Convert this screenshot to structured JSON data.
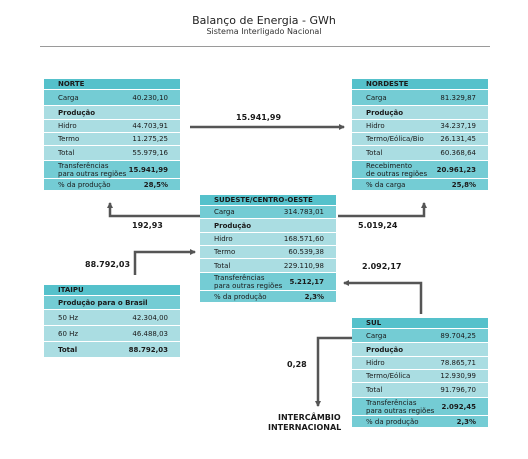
{
  "header": {
    "title": "Balanço de Energia - GWh",
    "subtitle": "Sistema Interligado Nacional"
  },
  "norte": {
    "name": "NORTE",
    "carga_label": "Carga",
    "carga": "40.230,10",
    "producao_label": "Produção",
    "hidro_label": "Hidro",
    "hidro": "44.703,91",
    "termo_label": "Termo",
    "termo": "11.275,25",
    "total_label": "Total",
    "total": "55.979,16",
    "transf_label_1": "Transferências",
    "transf_label_2": "para outras regiões",
    "transf": "15.941,99",
    "pct_label": "% da produção",
    "pct": "28,5%"
  },
  "nordeste": {
    "name": "NORDESTE",
    "carga_label": "Carga",
    "carga": "81.329,87",
    "producao_label": "Produção",
    "hidro_label": "Hidro",
    "hidro": "34.237,19",
    "termo_label": "Termo/Eólica/Bio",
    "termo": "26.131,45",
    "total_label": "Total",
    "total": "60.368,64",
    "transf_label_1": "Recebimento",
    "transf_label_2": "de outras regiões",
    "transf": "20.961,23",
    "pct_label": "% da carga",
    "pct": "25,8%"
  },
  "sudeste": {
    "name": "SUDESTE/CENTRO-OESTE",
    "carga_label": "Carga",
    "carga": "314.783,01",
    "producao_label": "Produção",
    "hidro_label": "Hidro",
    "hidro": "168.571,60",
    "termo_label": "Termo",
    "termo": "60.539,38",
    "total_label": "Total",
    "total": "229.110,98",
    "transf_label_1": "Transferências",
    "transf_label_2": "para outras regiões",
    "transf": "5.212,17",
    "pct_label": "% da produção",
    "pct": "2,3%"
  },
  "itaipu": {
    "name": "ITAIPU",
    "producao_label": "Produção para o Brasil",
    "hz50_label": "50 Hz",
    "hz50": "42.304,00",
    "hz60_label": "60 Hz",
    "hz60": "46.488,03",
    "total_label": "Total",
    "total": "88.792,03"
  },
  "sul": {
    "name": "SUL",
    "carga_label": "Carga",
    "carga": "89.704,25",
    "producao_label": "Produção",
    "hidro_label": "Hidro",
    "hidro": "78.865,71",
    "termo_label": "Termo/Eólica",
    "termo": "12.930,99",
    "total_label": "Total",
    "total": "91.796,70",
    "transf_label_1": "Transferências",
    "transf_label_2": "para outras regiões",
    "transf": "2.092,45",
    "pct_label": "% da produção",
    "pct": "2,3%"
  },
  "flows": {
    "norte_to_nordeste": "15.941,99",
    "sudeste_to_norte": "192,93",
    "sudeste_to_nordeste": "5.019,24",
    "itaipu_to_sudeste": "88.792,03",
    "sul_to_sudeste": "2.092,17",
    "sul_to_internacional": "0,28"
  },
  "intercambio": {
    "line1": "INTERCÂMBIO",
    "line2": "INTERNACIONAL"
  },
  "colors": {
    "header": "#55c1cb",
    "dark_row": "#74ccd4",
    "light_row": "#aadde2",
    "arrow": "#555555"
  }
}
